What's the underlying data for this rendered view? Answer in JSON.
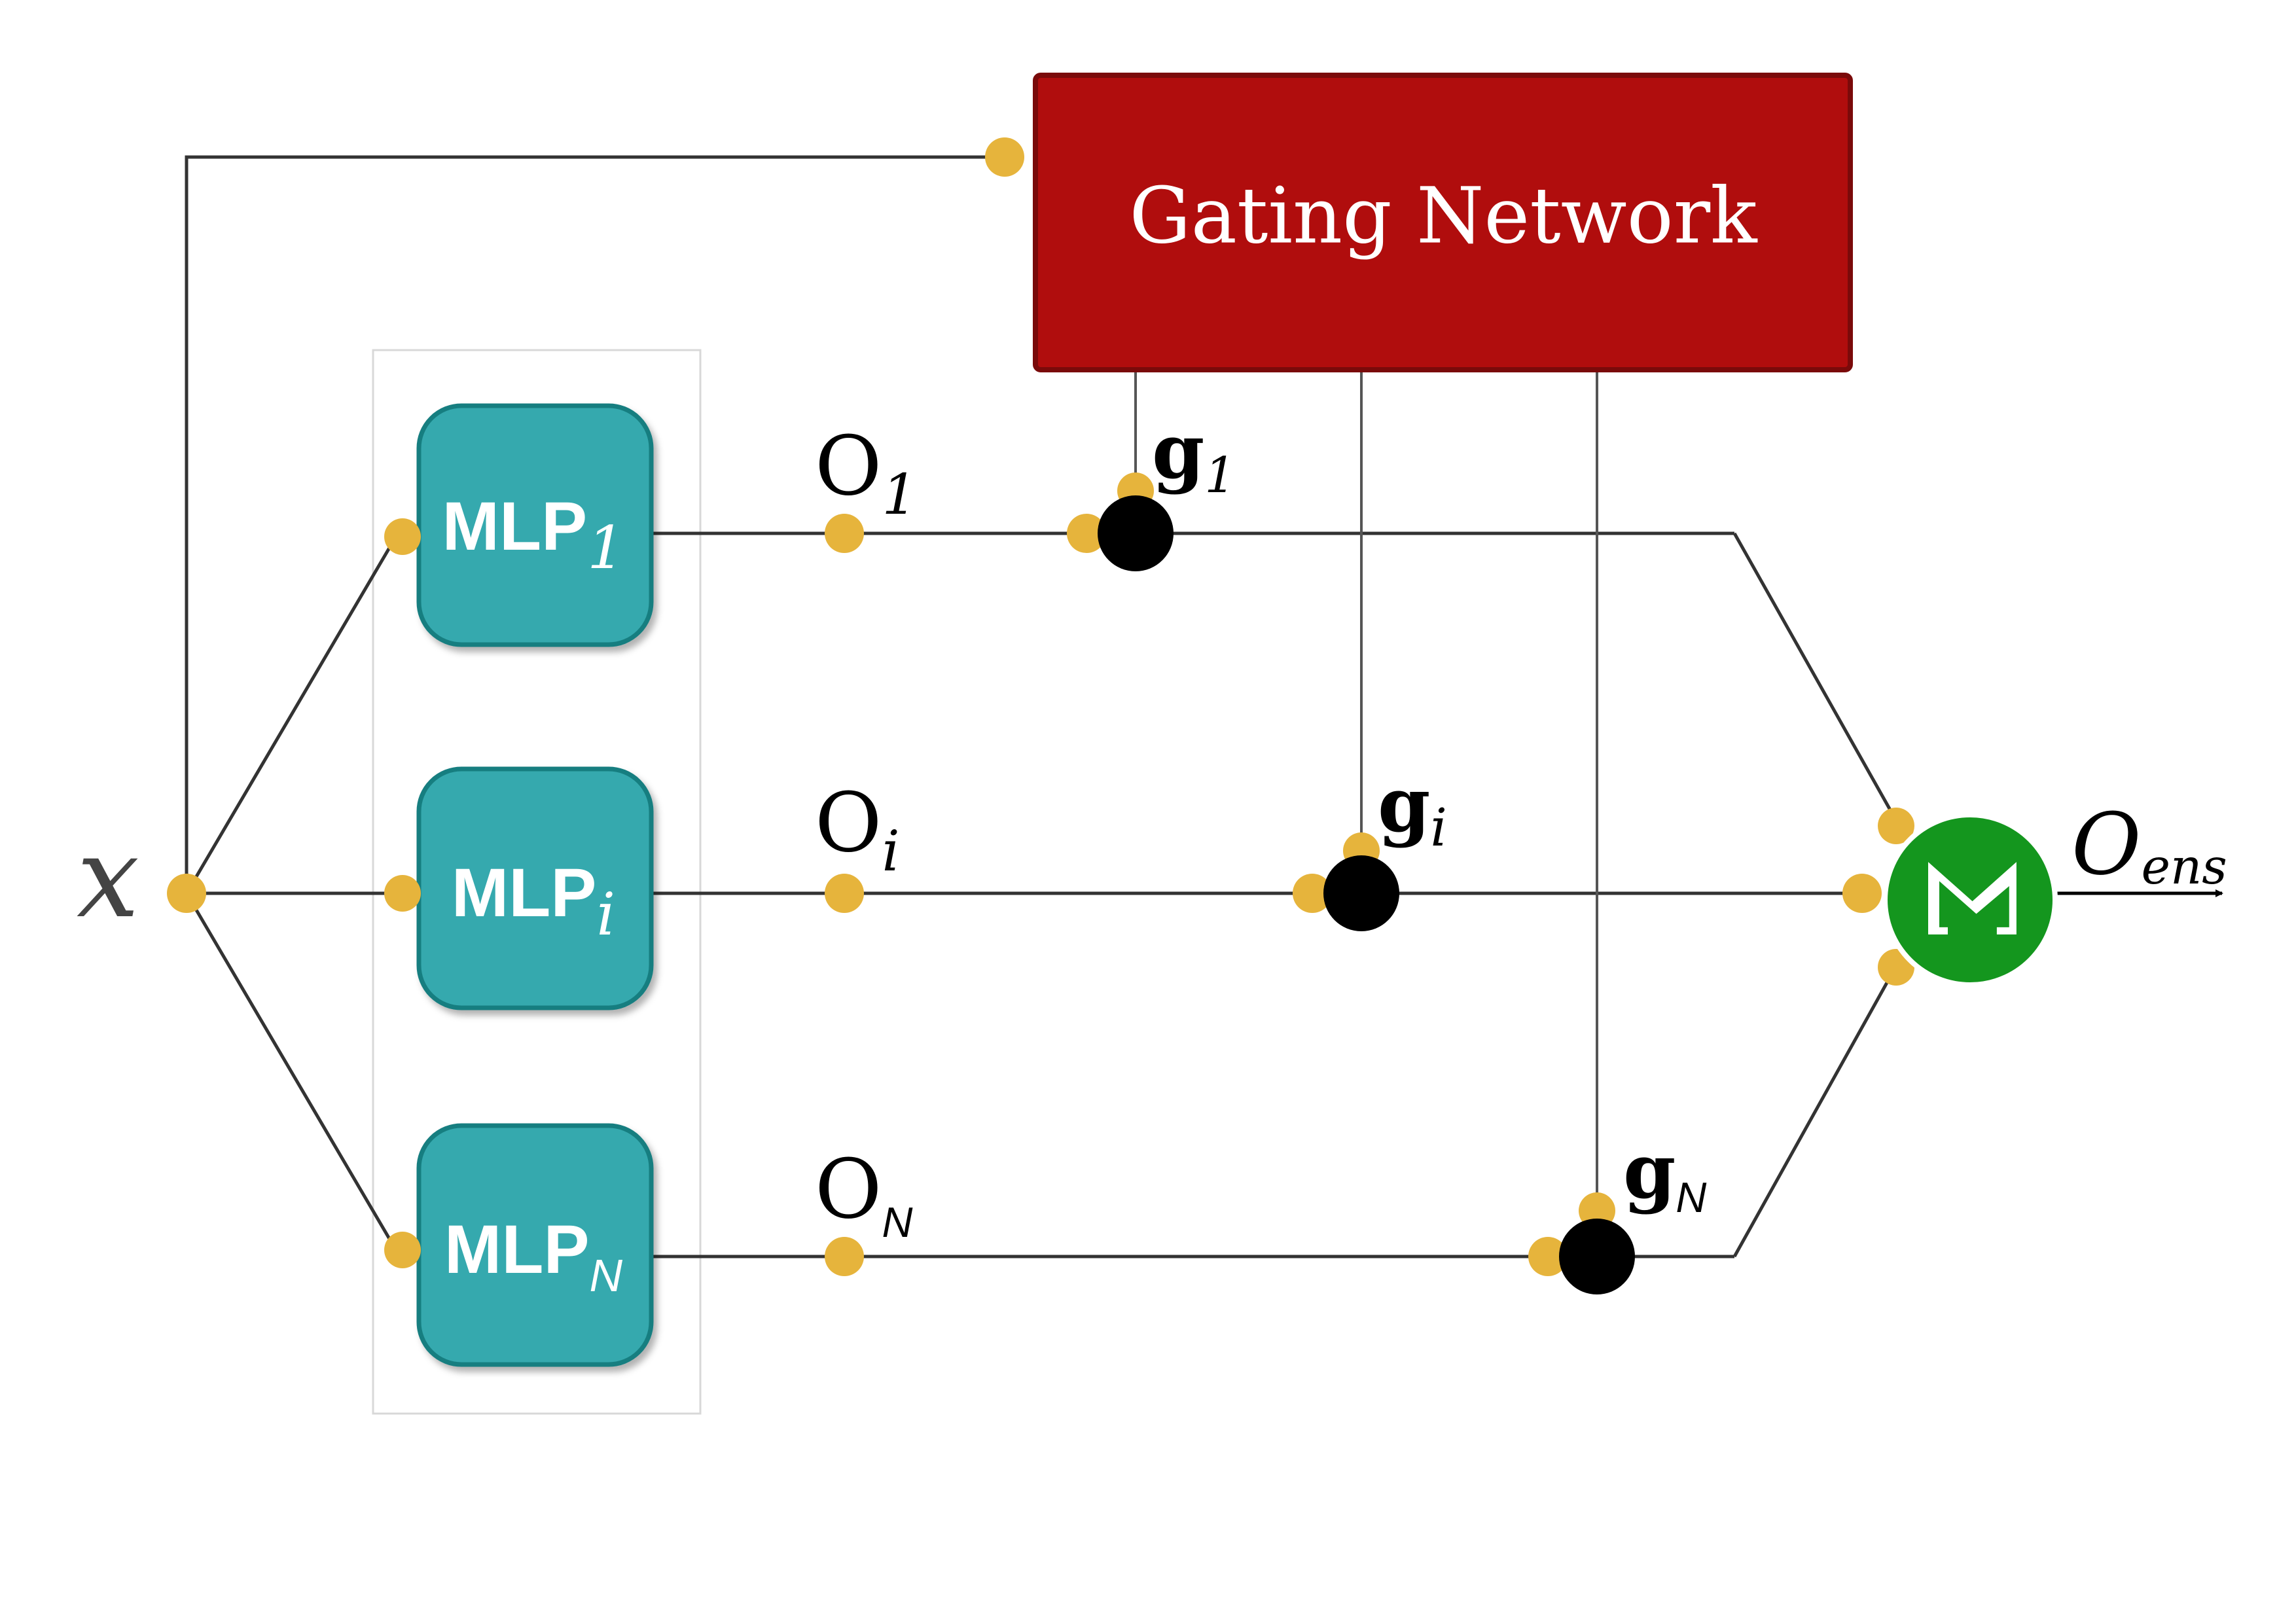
{
  "input": {
    "label": "x"
  },
  "gating": {
    "title": "Gating Network",
    "fill": "#B00D0D",
    "stroke": "#7A0A0A"
  },
  "experts": [
    {
      "name": "MLP",
      "sub": "1",
      "out": "O",
      "out_sub": "1",
      "gate": "g",
      "gate_sub": "1"
    },
    {
      "name": "MLP",
      "sub": "i",
      "out": "O",
      "out_sub": "i",
      "gate": "g",
      "gate_sub": "i"
    },
    {
      "name": "MLP",
      "sub": "N",
      "out": "O",
      "out_sub": "N",
      "gate": "g",
      "gate_sub": "N"
    }
  ],
  "sum": {
    "symbol": "Σ",
    "fill": "#14961E"
  },
  "output": {
    "label": "O",
    "sub": "ens"
  },
  "colors": {
    "mlp_fill": "#36A9AE",
    "mlp_stroke": "#177E80",
    "connector": "#E6B43C",
    "wire": "#333333"
  }
}
